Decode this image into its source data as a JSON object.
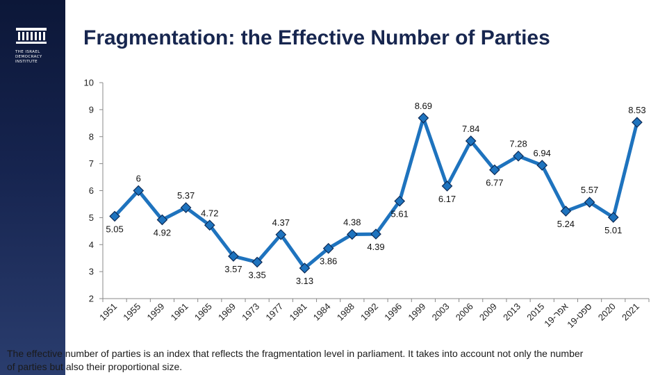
{
  "brand": {
    "logo_lines": [
      "THE ISRAEL",
      "DEMOCRACY",
      "INSTITUTE"
    ]
  },
  "title": "Fragmentation: the Effective Number of Parties",
  "footnote": "The effective number of parties is an index that reflects the fragmentation level in parliament. It takes into account not only the number of parties but also their proportional size.",
  "colors": {
    "series": "#1e73be",
    "marker": "#1e73be",
    "marker_stroke": "#0d2a55",
    "axis": "#888888",
    "sidebar": "#16244f",
    "title": "#17264f"
  },
  "chart_data": {
    "type": "line",
    "x": [
      "1951",
      "1955",
      "1959",
      "1961",
      "1965",
      "1969",
      "1973",
      "1977",
      "1981",
      "1984",
      "1988",
      "1992",
      "1996",
      "1999",
      "2003",
      "2006",
      "2009",
      "2013",
      "2015",
      "אפר-19",
      "ספט-19",
      "2020",
      "2021"
    ],
    "series": [
      {
        "values": [
          5.05,
          6,
          4.92,
          5.37,
          4.72,
          3.57,
          3.35,
          4.37,
          3.13,
          3.86,
          4.38,
          4.39,
          5.61,
          8.69,
          6.17,
          7.84,
          6.77,
          7.28,
          6.94,
          5.24,
          5.57,
          5.01,
          8.53
        ]
      }
    ],
    "data_labels": [
      "5.05",
      "6",
      "4.92",
      "5.37",
      "4.72",
      "3.57",
      "3.35",
      "4.37",
      "3.13",
      "3.86",
      "4.38",
      "4.39",
      "5.61",
      "8.69",
      "6.17",
      "7.84",
      "6.77",
      "7.28",
      "6.94",
      "5.24",
      "5.57",
      "5.01",
      "8.53"
    ],
    "label_positions": [
      "below",
      "above",
      "below",
      "above",
      "above",
      "below",
      "below",
      "above",
      "below",
      "below",
      "above",
      "below",
      "below",
      "above",
      "below",
      "above",
      "below",
      "above",
      "above",
      "below",
      "above",
      "below",
      "above"
    ],
    "yticks": [
      "2",
      "3",
      "4",
      "5",
      "6",
      "7",
      "8",
      "9",
      "10"
    ],
    "ylim": [
      2,
      10
    ],
    "grid": false,
    "legend": false,
    "marker": "diamond"
  }
}
